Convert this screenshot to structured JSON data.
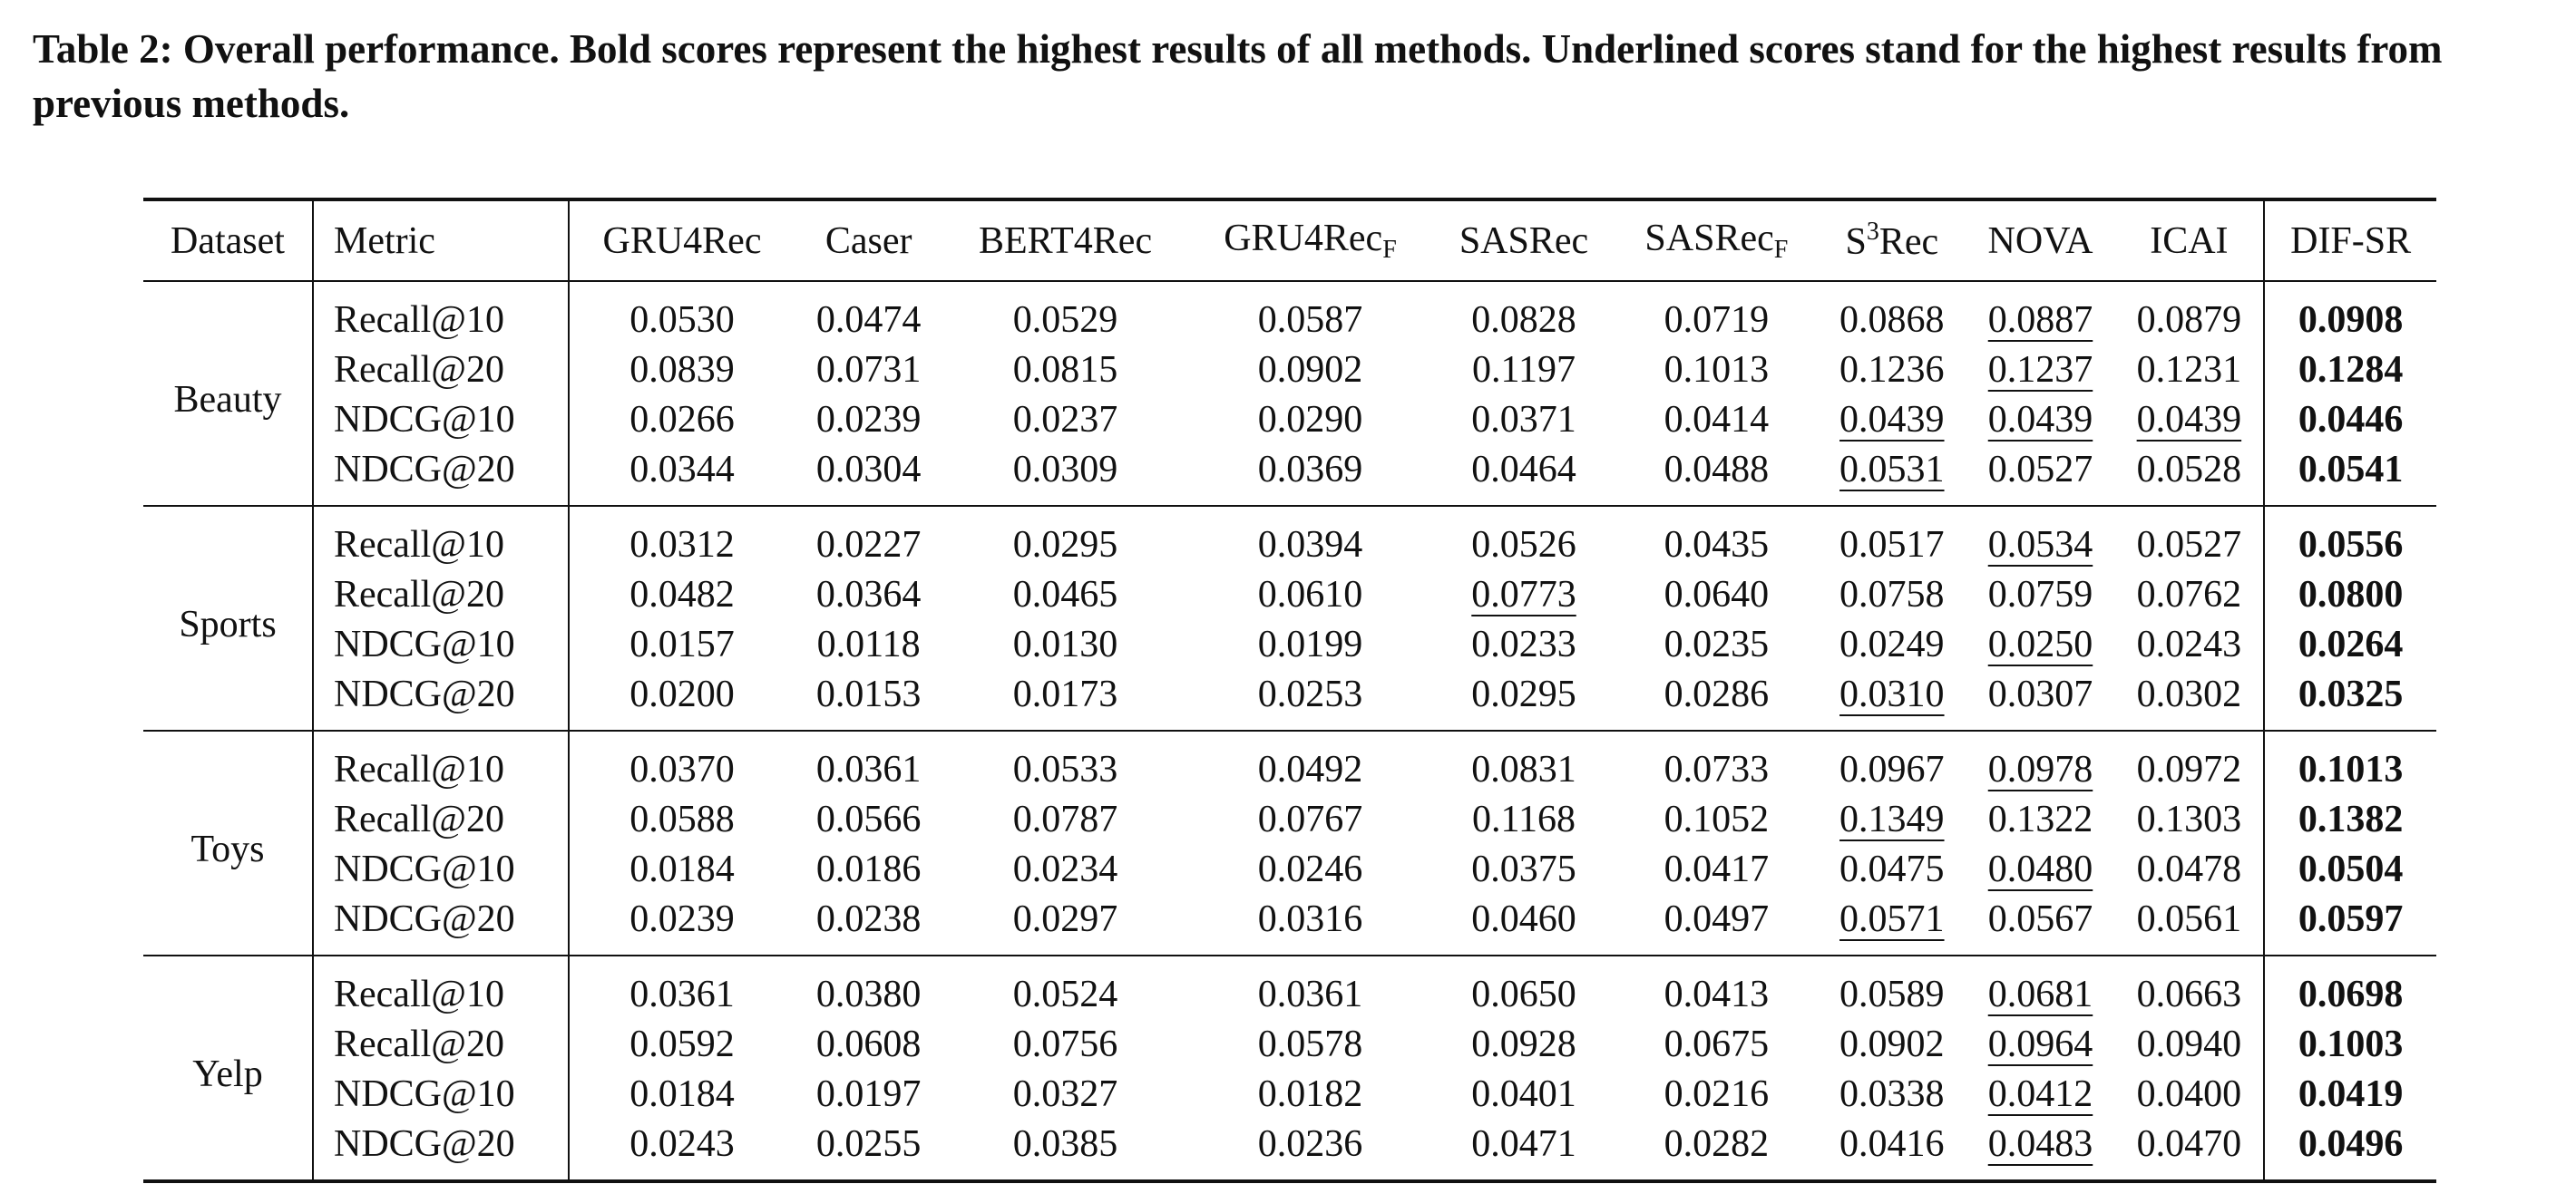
{
  "caption": "Table 2: Overall performance. Bold scores represent the highest results of all methods. Underlined scores stand for the highest results from previous methods.",
  "header": {
    "dataset": "Dataset",
    "metric": "Metric",
    "methods": [
      {
        "base": "GRU4Rec",
        "sup": "",
        "suffix": "",
        "sub": ""
      },
      {
        "base": "Caser",
        "sup": "",
        "suffix": "",
        "sub": ""
      },
      {
        "base": "BERT4Rec",
        "sup": "",
        "suffix": "",
        "sub": ""
      },
      {
        "base": "GRU4Rec",
        "sup": "",
        "suffix": "",
        "sub": "F"
      },
      {
        "base": "SASRec",
        "sup": "",
        "suffix": "",
        "sub": ""
      },
      {
        "base": "SASRec",
        "sup": "",
        "suffix": "",
        "sub": "F"
      },
      {
        "base": "S",
        "sup": "3",
        "suffix": "Rec",
        "sub": ""
      },
      {
        "base": "NOVA",
        "sup": "",
        "suffix": "",
        "sub": ""
      },
      {
        "base": "ICAI",
        "sup": "",
        "suffix": "",
        "sub": ""
      },
      {
        "base": "DIF-SR",
        "sup": "",
        "suffix": "",
        "sub": ""
      }
    ]
  },
  "groups": [
    {
      "dataset": "Beauty",
      "rows": [
        {
          "metric": "Recall@10",
          "values": [
            "0.0530",
            "0.0474",
            "0.0529",
            "0.0587",
            "0.0828",
            "0.0719",
            "0.0868",
            "0.0887",
            "0.0879",
            "0.0908"
          ],
          "best": [
            9
          ],
          "prev_best": [
            7
          ]
        },
        {
          "metric": "Recall@20",
          "values": [
            "0.0839",
            "0.0731",
            "0.0815",
            "0.0902",
            "0.1197",
            "0.1013",
            "0.1236",
            "0.1237",
            "0.1231",
            "0.1284"
          ],
          "best": [
            9
          ],
          "prev_best": [
            7
          ]
        },
        {
          "metric": "NDCG@10",
          "values": [
            "0.0266",
            "0.0239",
            "0.0237",
            "0.0290",
            "0.0371",
            "0.0414",
            "0.0439",
            "0.0439",
            "0.0439",
            "0.0446"
          ],
          "best": [
            9
          ],
          "prev_best": [
            6,
            7,
            8
          ]
        },
        {
          "metric": "NDCG@20",
          "values": [
            "0.0344",
            "0.0304",
            "0.0309",
            "0.0369",
            "0.0464",
            "0.0488",
            "0.0531",
            "0.0527",
            "0.0528",
            "0.0541"
          ],
          "best": [
            9
          ],
          "prev_best": [
            6
          ]
        }
      ]
    },
    {
      "dataset": "Sports",
      "rows": [
        {
          "metric": "Recall@10",
          "values": [
            "0.0312",
            "0.0227",
            "0.0295",
            "0.0394",
            "0.0526",
            "0.0435",
            "0.0517",
            "0.0534",
            "0.0527",
            "0.0556"
          ],
          "best": [
            9
          ],
          "prev_best": [
            7
          ]
        },
        {
          "metric": "Recall@20",
          "values": [
            "0.0482",
            "0.0364",
            "0.0465",
            "0.0610",
            "0.0773",
            "0.0640",
            "0.0758",
            "0.0759",
            "0.0762",
            "0.0800"
          ],
          "best": [
            9
          ],
          "prev_best": [
            4
          ]
        },
        {
          "metric": "NDCG@10",
          "values": [
            "0.0157",
            "0.0118",
            "0.0130",
            "0.0199",
            "0.0233",
            "0.0235",
            "0.0249",
            "0.0250",
            "0.0243",
            "0.0264"
          ],
          "best": [
            9
          ],
          "prev_best": [
            7
          ]
        },
        {
          "metric": "NDCG@20",
          "values": [
            "0.0200",
            "0.0153",
            "0.0173",
            "0.0253",
            "0.0295",
            "0.0286",
            "0.0310",
            "0.0307",
            "0.0302",
            "0.0325"
          ],
          "best": [
            9
          ],
          "prev_best": [
            6
          ]
        }
      ]
    },
    {
      "dataset": "Toys",
      "rows": [
        {
          "metric": "Recall@10",
          "values": [
            "0.0370",
            "0.0361",
            "0.0533",
            "0.0492",
            "0.0831",
            "0.0733",
            "0.0967",
            "0.0978",
            "0.0972",
            "0.1013"
          ],
          "best": [
            9
          ],
          "prev_best": [
            7
          ]
        },
        {
          "metric": "Recall@20",
          "values": [
            "0.0588",
            "0.0566",
            "0.0787",
            "0.0767",
            "0.1168",
            "0.1052",
            "0.1349",
            "0.1322",
            "0.1303",
            "0.1382"
          ],
          "best": [
            9
          ],
          "prev_best": [
            6
          ]
        },
        {
          "metric": "NDCG@10",
          "values": [
            "0.0184",
            "0.0186",
            "0.0234",
            "0.0246",
            "0.0375",
            "0.0417",
            "0.0475",
            "0.0480",
            "0.0478",
            "0.0504"
          ],
          "best": [
            9
          ],
          "prev_best": [
            7
          ]
        },
        {
          "metric": "NDCG@20",
          "values": [
            "0.0239",
            "0.0238",
            "0.0297",
            "0.0316",
            "0.0460",
            "0.0497",
            "0.0571",
            "0.0567",
            "0.0561",
            "0.0597"
          ],
          "best": [
            9
          ],
          "prev_best": [
            6
          ]
        }
      ]
    },
    {
      "dataset": "Yelp",
      "rows": [
        {
          "metric": "Recall@10",
          "values": [
            "0.0361",
            "0.0380",
            "0.0524",
            "0.0361",
            "0.0650",
            "0.0413",
            "0.0589",
            "0.0681",
            "0.0663",
            "0.0698"
          ],
          "best": [
            9
          ],
          "prev_best": [
            7
          ]
        },
        {
          "metric": "Recall@20",
          "values": [
            "0.0592",
            "0.0608",
            "0.0756",
            "0.0578",
            "0.0928",
            "0.0675",
            "0.0902",
            "0.0964",
            "0.0940",
            "0.1003"
          ],
          "best": [
            9
          ],
          "prev_best": [
            7
          ]
        },
        {
          "metric": "NDCG@10",
          "values": [
            "0.0184",
            "0.0197",
            "0.0327",
            "0.0182",
            "0.0401",
            "0.0216",
            "0.0338",
            "0.0412",
            "0.0400",
            "0.0419"
          ],
          "best": [
            9
          ],
          "prev_best": [
            7
          ]
        },
        {
          "metric": "NDCG@20",
          "values": [
            "0.0243",
            "0.0255",
            "0.0385",
            "0.0236",
            "0.0471",
            "0.0282",
            "0.0416",
            "0.0483",
            "0.0470",
            "0.0496"
          ],
          "best": [
            9
          ],
          "prev_best": [
            7
          ]
        }
      ]
    }
  ]
}
